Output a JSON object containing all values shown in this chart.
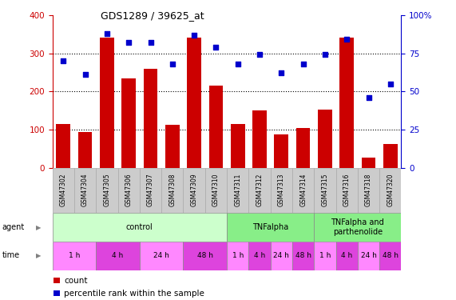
{
  "title": "GDS1289 / 39625_at",
  "samples": [
    "GSM47302",
    "GSM47304",
    "GSM47305",
    "GSM47306",
    "GSM47307",
    "GSM47308",
    "GSM47309",
    "GSM47310",
    "GSM47311",
    "GSM47312",
    "GSM47313",
    "GSM47314",
    "GSM47315",
    "GSM47316",
    "GSM47318",
    "GSM47320"
  ],
  "counts": [
    115,
    95,
    340,
    235,
    260,
    112,
    340,
    215,
    115,
    150,
    88,
    105,
    153,
    340,
    28,
    62
  ],
  "pct_values": [
    70,
    61,
    88,
    82,
    82,
    68,
    87,
    79,
    68,
    74,
    62,
    68,
    74,
    84,
    46,
    55
  ],
  "agent_groups": [
    {
      "label": "control",
      "start": 0,
      "end": 8,
      "color": "#ccffcc"
    },
    {
      "label": "TNFalpha",
      "start": 8,
      "end": 12,
      "color": "#88ee88"
    },
    {
      "label": "TNFalpha and\nparthenolide",
      "start": 12,
      "end": 16,
      "color": "#88ee88"
    }
  ],
  "time_groups": [
    {
      "label": "1 h",
      "start": 0,
      "end": 2,
      "color": "#ff88ff"
    },
    {
      "label": "4 h",
      "start": 2,
      "end": 4,
      "color": "#dd44dd"
    },
    {
      "label": "24 h",
      "start": 4,
      "end": 6,
      "color": "#ff88ff"
    },
    {
      "label": "48 h",
      "start": 6,
      "end": 8,
      "color": "#dd44dd"
    },
    {
      "label": "1 h",
      "start": 8,
      "end": 9,
      "color": "#ff88ff"
    },
    {
      "label": "4 h",
      "start": 9,
      "end": 10,
      "color": "#dd44dd"
    },
    {
      "label": "24 h",
      "start": 10,
      "end": 11,
      "color": "#ff88ff"
    },
    {
      "label": "48 h",
      "start": 11,
      "end": 12,
      "color": "#dd44dd"
    },
    {
      "label": "1 h",
      "start": 12,
      "end": 13,
      "color": "#ff88ff"
    },
    {
      "label": "4 h",
      "start": 13,
      "end": 14,
      "color": "#dd44dd"
    },
    {
      "label": "24 h",
      "start": 14,
      "end": 15,
      "color": "#ff88ff"
    },
    {
      "label": "48 h",
      "start": 15,
      "end": 16,
      "color": "#dd44dd"
    }
  ],
  "ylim_left": [
    0,
    400
  ],
  "ylim_right": [
    0,
    100
  ],
  "yticks_left": [
    0,
    100,
    200,
    300,
    400
  ],
  "yticks_right": [
    0,
    25,
    50,
    75,
    100
  ],
  "ytick_right_labels": [
    "0",
    "25",
    "50",
    "75",
    "100%"
  ],
  "bar_color": "#cc0000",
  "dot_color": "#0000cc",
  "background_color": "#ffffff",
  "sample_bg": "#cccccc",
  "title_fontsize": 9
}
